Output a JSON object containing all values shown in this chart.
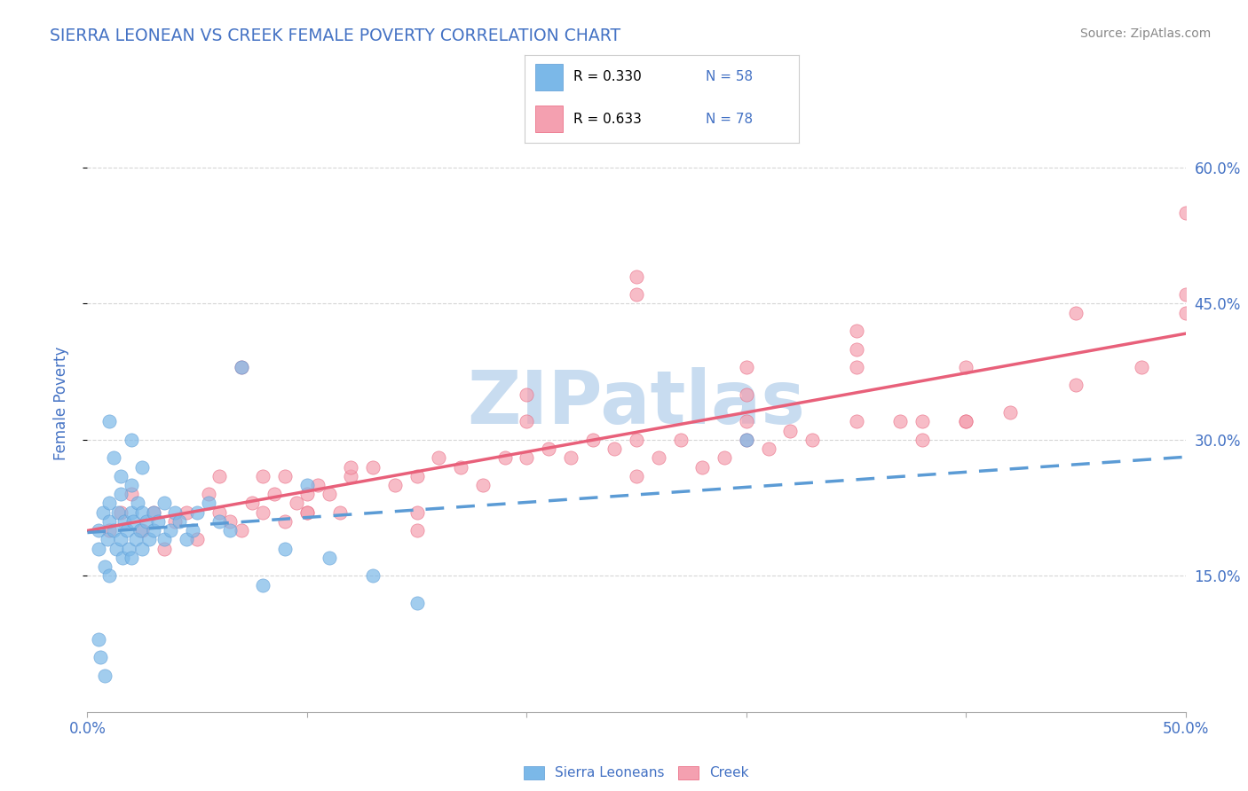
{
  "title": "SIERRA LEONEAN VS CREEK FEMALE POVERTY CORRELATION CHART",
  "source_text": "Source: ZipAtlas.com",
  "ylabel": "Female Poverty",
  "watermark": "ZIPatlas",
  "x_min": 0.0,
  "x_max": 0.5,
  "y_min": 0.0,
  "y_max": 0.68,
  "y_ticks": [
    0.15,
    0.3,
    0.45,
    0.6
  ],
  "y_tick_labels": [
    "15.0%",
    "30.0%",
    "45.0%",
    "60.0%"
  ],
  "x_ticks": [
    0.0,
    0.1,
    0.2,
    0.3,
    0.4,
    0.5
  ],
  "x_tick_labels": [
    "0.0%",
    "",
    "",
    "",
    "",
    "50.0%"
  ],
  "sierra_color": "#7BB8E8",
  "creek_color": "#F4A0B0",
  "sierra_line_color": "#5B9BD5",
  "creek_line_color": "#E8607A",
  "background_color": "#FFFFFF",
  "plot_bg_color": "#FFFFFF",
  "grid_color": "#CCCCCC",
  "title_color": "#4472C4",
  "tick_label_color": "#4472C4",
  "watermark_color": "#C8DCF0",
  "sierra_R": 0.33,
  "sierra_N": 58,
  "creek_R": 0.633,
  "creek_N": 78,
  "sierra_points_x": [
    0.005,
    0.005,
    0.007,
    0.008,
    0.009,
    0.01,
    0.01,
    0.01,
    0.012,
    0.013,
    0.014,
    0.015,
    0.015,
    0.016,
    0.017,
    0.018,
    0.019,
    0.02,
    0.02,
    0.02,
    0.021,
    0.022,
    0.023,
    0.024,
    0.025,
    0.025,
    0.027,
    0.028,
    0.03,
    0.03,
    0.032,
    0.035,
    0.035,
    0.038,
    0.04,
    0.042,
    0.045,
    0.048,
    0.05,
    0.055,
    0.06,
    0.065,
    0.07,
    0.08,
    0.09,
    0.1,
    0.11,
    0.13,
    0.15,
    0.005,
    0.006,
    0.008,
    0.01,
    0.012,
    0.015,
    0.02,
    0.025,
    0.3
  ],
  "sierra_points_y": [
    0.2,
    0.18,
    0.22,
    0.16,
    0.19,
    0.21,
    0.23,
    0.15,
    0.2,
    0.18,
    0.22,
    0.19,
    0.24,
    0.17,
    0.21,
    0.2,
    0.18,
    0.22,
    0.25,
    0.17,
    0.21,
    0.19,
    0.23,
    0.2,
    0.22,
    0.18,
    0.21,
    0.19,
    0.22,
    0.2,
    0.21,
    0.19,
    0.23,
    0.2,
    0.22,
    0.21,
    0.19,
    0.2,
    0.22,
    0.23,
    0.21,
    0.2,
    0.38,
    0.14,
    0.18,
    0.25,
    0.17,
    0.15,
    0.12,
    0.08,
    0.06,
    0.04,
    0.32,
    0.28,
    0.26,
    0.3,
    0.27,
    0.3
  ],
  "creek_points_x": [
    0.01,
    0.015,
    0.02,
    0.025,
    0.03,
    0.035,
    0.04,
    0.045,
    0.05,
    0.055,
    0.06,
    0.065,
    0.07,
    0.075,
    0.08,
    0.085,
    0.09,
    0.095,
    0.1,
    0.105,
    0.11,
    0.115,
    0.12,
    0.13,
    0.14,
    0.15,
    0.16,
    0.17,
    0.18,
    0.19,
    0.2,
    0.21,
    0.22,
    0.23,
    0.24,
    0.25,
    0.26,
    0.27,
    0.28,
    0.29,
    0.3,
    0.31,
    0.32,
    0.33,
    0.35,
    0.37,
    0.38,
    0.4,
    0.42,
    0.45,
    0.48,
    0.5,
    0.07,
    0.09,
    0.12,
    0.15,
    0.2,
    0.25,
    0.3,
    0.35,
    0.4,
    0.45,
    0.5,
    0.25,
    0.3,
    0.35,
    0.2,
    0.1,
    0.3,
    0.38,
    0.4,
    0.06,
    0.08,
    0.1,
    0.15,
    0.35,
    0.25,
    0.5
  ],
  "creek_points_y": [
    0.2,
    0.22,
    0.24,
    0.2,
    0.22,
    0.18,
    0.21,
    0.22,
    0.19,
    0.24,
    0.22,
    0.21,
    0.2,
    0.23,
    0.22,
    0.24,
    0.21,
    0.23,
    0.22,
    0.25,
    0.24,
    0.22,
    0.26,
    0.27,
    0.25,
    0.26,
    0.28,
    0.27,
    0.25,
    0.28,
    0.28,
    0.29,
    0.28,
    0.3,
    0.29,
    0.3,
    0.28,
    0.3,
    0.27,
    0.28,
    0.3,
    0.29,
    0.31,
    0.3,
    0.32,
    0.32,
    0.3,
    0.32,
    0.33,
    0.36,
    0.38,
    0.44,
    0.38,
    0.26,
    0.27,
    0.22,
    0.35,
    0.46,
    0.35,
    0.38,
    0.38,
    0.44,
    0.46,
    0.48,
    0.32,
    0.4,
    0.32,
    0.22,
    0.38,
    0.32,
    0.32,
    0.26,
    0.26,
    0.24,
    0.2,
    0.42,
    0.26,
    0.55
  ]
}
